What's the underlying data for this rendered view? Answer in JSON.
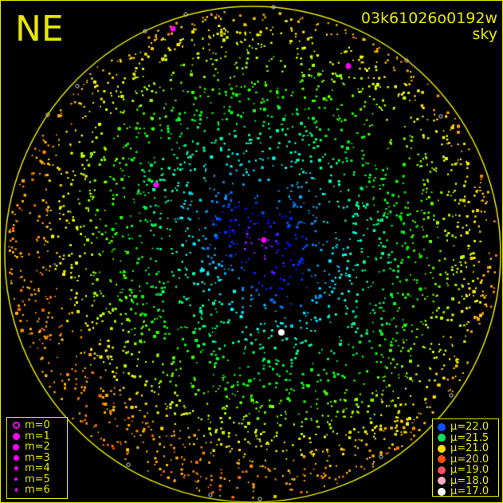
{
  "header": {
    "direction": "NE",
    "image_id": "03k61026o0192w",
    "image_type": "sky"
  },
  "colors": {
    "frame": "#e8e800",
    "horizon_circle": "#e8e800",
    "background": "#000000"
  },
  "magnitude_legend": {
    "symbol_color": "#ff00ff",
    "items": [
      {
        "label": "m=0",
        "symbol": "open-circle"
      },
      {
        "label": "m=1",
        "symbol": "dot"
      },
      {
        "label": "m=2",
        "symbol": "dot"
      },
      {
        "label": "m=3",
        "symbol": "dot"
      },
      {
        "label": "m=4",
        "symbol": "dot"
      },
      {
        "label": "m=5",
        "symbol": "dot"
      },
      {
        "label": "m=6",
        "symbol": "dot"
      }
    ]
  },
  "sky_brightness_legend": {
    "items": [
      {
        "label": "μ=22.0",
        "color": "#1050ff"
      },
      {
        "label": "μ=21.5",
        "color": "#10e060"
      },
      {
        "label": "μ=21.0",
        "color": "#ffe000"
      },
      {
        "label": "μ=20.0",
        "color": "#ff5010"
      },
      {
        "label": "μ=19.0",
        "color": "#f05060"
      },
      {
        "label": "μ=18.0",
        "color": "#ffb0c0"
      },
      {
        "label": "μ=17.0",
        "color": "#ffffff"
      }
    ]
  }
}
